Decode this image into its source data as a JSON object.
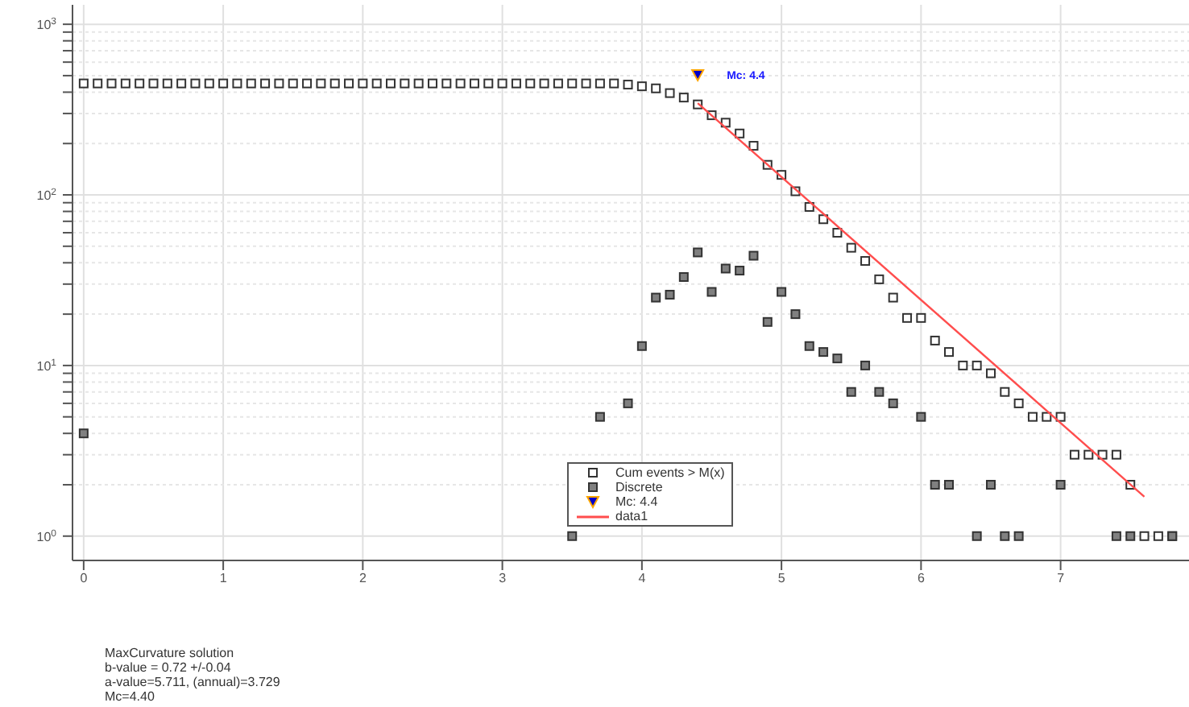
{
  "chart_data": {
    "type": "scatter",
    "log": "y",
    "grid": true,
    "legend": "bottom",
    "marker": "square",
    "xlim": [
      -0.08,
      7.92
    ],
    "xticks": [
      0,
      1,
      2,
      3,
      4,
      5,
      6,
      7
    ],
    "ylim": [
      0.72,
      1300
    ],
    "yticks": [
      {
        "value": 1,
        "label": "10$^{0}$"
      },
      {
        "value": 2,
        "label": null
      },
      {
        "value": 3,
        "label": null
      },
      {
        "value": 4,
        "label": null
      },
      {
        "value": 5,
        "label": null
      },
      {
        "value": 6,
        "label": null
      },
      {
        "value": 7,
        "label": null
      },
      {
        "value": 8,
        "label": null
      },
      {
        "value": 9,
        "label": null
      },
      {
        "value": 10,
        "label": "10$^{1}$"
      },
      {
        "value": 20,
        "label": null
      },
      {
        "value": 30,
        "label": null
      },
      {
        "value": 40,
        "label": null
      },
      {
        "value": 50,
        "label": null
      },
      {
        "value": 60,
        "label": null
      },
      {
        "value": 70,
        "label": null
      },
      {
        "value": 80,
        "label": null
      },
      {
        "value": 90,
        "label": null
      },
      {
        "value": 100,
        "label": "10$^{2}$"
      },
      {
        "value": 200,
        "label": null
      },
      {
        "value": 300,
        "label": null
      },
      {
        "value": 400,
        "label": null
      },
      {
        "value": 500,
        "label": null
      },
      {
        "value": 600,
        "label": null
      },
      {
        "value": 700,
        "label": null
      },
      {
        "value": 800,
        "label": null
      },
      {
        "value": 900,
        "label": null
      },
      {
        "value": 1000,
        "label": "10$^{3}$"
      }
    ],
    "series": [
      {
        "name": "Cum events > M(x)",
        "color": "#404040",
        "x": [
          0,
          0.1,
          0.2,
          0.3,
          0.4,
          0.5,
          0.6,
          0.7,
          0.8,
          0.9,
          1.0,
          1.1,
          1.2,
          1.3,
          1.4,
          1.5,
          1.6,
          1.7,
          1.8,
          1.9,
          2.0,
          2.1,
          2.2,
          2.3,
          2.4,
          2.5,
          2.6,
          2.7,
          2.8,
          2.9,
          3.0,
          3.1,
          3.2,
          3.3,
          3.4,
          3.5,
          3.6,
          3.7,
          3.8,
          3.9,
          4.0,
          4.1,
          4.2,
          4.3,
          4.4,
          4.5,
          4.6,
          4.7,
          4.8,
          4.9,
          5.0,
          5.1,
          5.2,
          5.3,
          5.4,
          5.5,
          5.6,
          5.7,
          5.8,
          5.9,
          6.0,
          6.1,
          6.2,
          6.3,
          6.4,
          6.5,
          6.6,
          6.7,
          6.8,
          6.9,
          7.0,
          7.1,
          7.2,
          7.3,
          7.4,
          7.5,
          7.6,
          7.7,
          7.8
        ],
        "values": [
          450,
          450,
          450,
          450,
          450,
          450,
          450,
          450,
          450,
          450,
          450,
          450,
          450,
          450,
          450,
          450,
          450,
          450,
          450,
          450,
          450,
          450,
          450,
          450,
          450,
          450,
          450,
          450,
          450,
          450,
          450,
          450,
          450,
          450,
          450,
          450,
          450,
          450,
          450,
          443,
          433,
          421,
          395,
          372,
          339,
          293,
          265,
          229,
          194,
          150,
          131,
          105,
          85,
          72,
          60,
          49,
          41,
          32,
          25,
          19,
          19,
          14,
          12,
          10,
          10,
          9,
          7,
          6,
          5,
          5,
          5,
          3,
          3,
          3,
          3,
          2,
          1,
          1,
          1
        ]
      },
      {
        "name": "Discrete",
        "color": "#808080",
        "x": [
          0,
          3.5,
          3.7,
          3.9,
          4.0,
          4.1,
          4.2,
          4.3,
          4.4,
          4.5,
          4.6,
          4.7,
          4.8,
          4.9,
          5.0,
          5.1,
          5.2,
          5.3,
          5.4,
          5.5,
          5.6,
          5.7,
          5.8,
          6.0,
          6.1,
          6.2,
          6.4,
          6.5,
          6.6,
          6.7,
          7.0,
          7.4,
          7.5,
          7.8
        ],
        "values": [
          4,
          1,
          5,
          6,
          13,
          25,
          26,
          33,
          46,
          27,
          37,
          36,
          44,
          18,
          27,
          20,
          13,
          12,
          11,
          7,
          10,
          7,
          6,
          5,
          2,
          2,
          1,
          2,
          1,
          1,
          2,
          1,
          1,
          1
        ]
      },
      {
        "name": "Mc: 4.4",
        "color": "#0000cc",
        "marker": "triangle",
        "x": [
          4.4
        ],
        "values": [
          505
        ]
      },
      {
        "name": "data1",
        "type": "line",
        "marker": "none",
        "color": "#ff4d4d",
        "x": [
          4.4,
          7.6
        ],
        "values": [
          345,
          1.7
        ]
      }
    ],
    "annotations": [
      {
        "text": "Mc: 4.4",
        "x": 4.4,
        "y": 505
      },
      "MaxCurvature solution",
      "b-value = 0.72 +/-0.04",
      "a-value=5.711, (annual)=3.729",
      "Mc=4.40"
    ]
  }
}
